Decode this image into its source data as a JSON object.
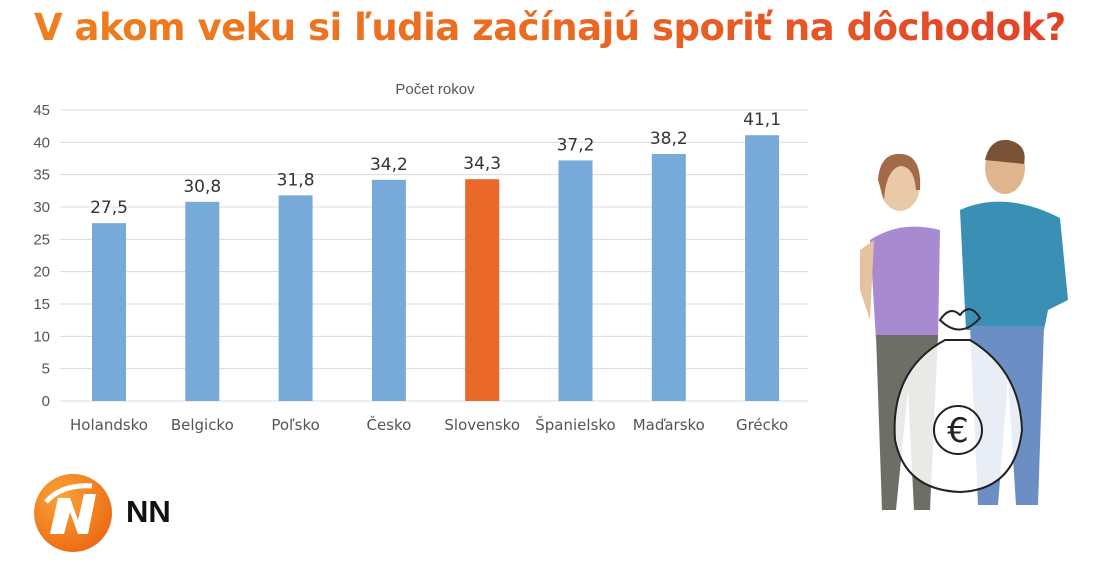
{
  "title": "V akom veku si ľudia začínajú sporiť na dôchodok?",
  "brand": {
    "name": "NN",
    "logo_color": "#f07e1c"
  },
  "illustration": {
    "description_icons": [
      "woman-icon",
      "man-icon",
      "euro-money-bag-icon"
    ]
  },
  "chart_data": {
    "type": "bar",
    "title": "Počet rokov",
    "categories": [
      "Holandsko",
      "Belgicko",
      "Poľsko",
      "Česko",
      "Slovensko",
      "Španielsko",
      "Maďarsko",
      "Grécko"
    ],
    "values": [
      27.5,
      30.8,
      31.8,
      34.2,
      34.3,
      37.2,
      38.2,
      41.1
    ],
    "data_labels": [
      "27,5",
      "30,8",
      "31,8",
      "34,2",
      "34,3",
      "37,2",
      "38,2",
      "41,1"
    ],
    "ylim": [
      0,
      45
    ],
    "yticks": [
      0,
      5,
      10,
      15,
      20,
      25,
      30,
      35,
      40,
      45
    ],
    "grid": true,
    "legend": "none",
    "colors": {
      "default": "#77a9d9",
      "highlight": "#e8692a"
    },
    "highlight_category": "Slovensko"
  }
}
